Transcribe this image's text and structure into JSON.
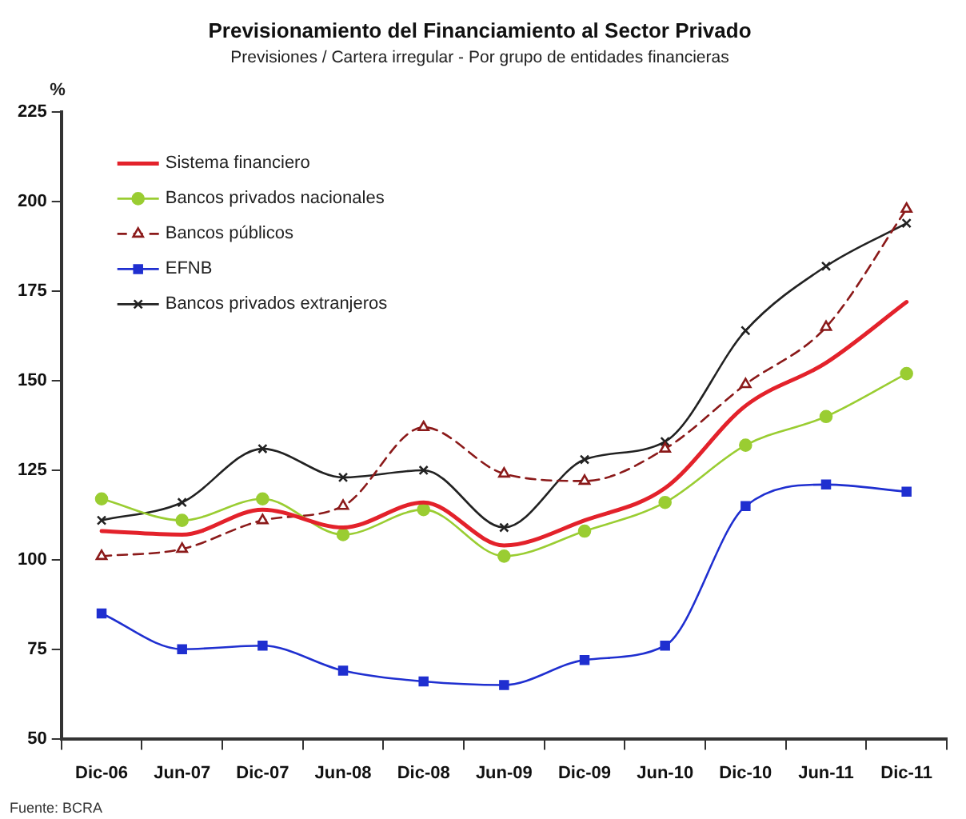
{
  "chart_data": {
    "type": "line",
    "title": "Previsionamiento del Financiamiento al Sector Privado",
    "subtitle": "Previsiones / Cartera irregular - Por grupo de entidades financieras",
    "ylabel": "%",
    "annotations": [
      "Fuente: BCRA"
    ],
    "categories": [
      "Dic-06",
      "Jun-07",
      "Dic-07",
      "Jun-08",
      "Dic-08",
      "Jun-09",
      "Dic-09",
      "Jun-10",
      "Dic-10",
      "Jun-11",
      "Dic-11"
    ],
    "ylim": [
      50,
      225
    ],
    "yticks": [
      50,
      75,
      100,
      125,
      150,
      175,
      200,
      225
    ],
    "grid": false,
    "legend": "top left",
    "series": [
      {
        "name": "Sistema financiero",
        "color": "#e3222b",
        "marker": "none",
        "line_style": "solid",
        "values": [
          108,
          107,
          114,
          109,
          116,
          104,
          111,
          120,
          143,
          155,
          172
        ]
      },
      {
        "name": "Bancos privados nacionales",
        "color": "#9acd32",
        "marker": "circle",
        "line_style": "solid",
        "values": [
          117,
          111,
          117,
          107,
          114,
          101,
          108,
          116,
          132,
          140,
          152
        ]
      },
      {
        "name": "Bancos públicos",
        "color": "#8b1a1a",
        "marker": "triangle",
        "line_style": "dashed",
        "values": [
          101,
          103,
          111,
          115,
          137,
          124,
          122,
          131,
          149,
          165,
          198
        ]
      },
      {
        "name": "EFNB",
        "color": "#1f2fd0",
        "marker": "square",
        "line_style": "solid",
        "values": [
          85,
          75,
          76,
          69,
          66,
          65,
          72,
          76,
          115,
          121,
          119
        ]
      },
      {
        "name": "Bancos privados extranjeros",
        "color": "#222222",
        "marker": "cross",
        "line_style": "solid",
        "values": [
          111,
          116,
          131,
          123,
          125,
          109,
          128,
          133,
          164,
          182,
          194
        ]
      }
    ]
  }
}
